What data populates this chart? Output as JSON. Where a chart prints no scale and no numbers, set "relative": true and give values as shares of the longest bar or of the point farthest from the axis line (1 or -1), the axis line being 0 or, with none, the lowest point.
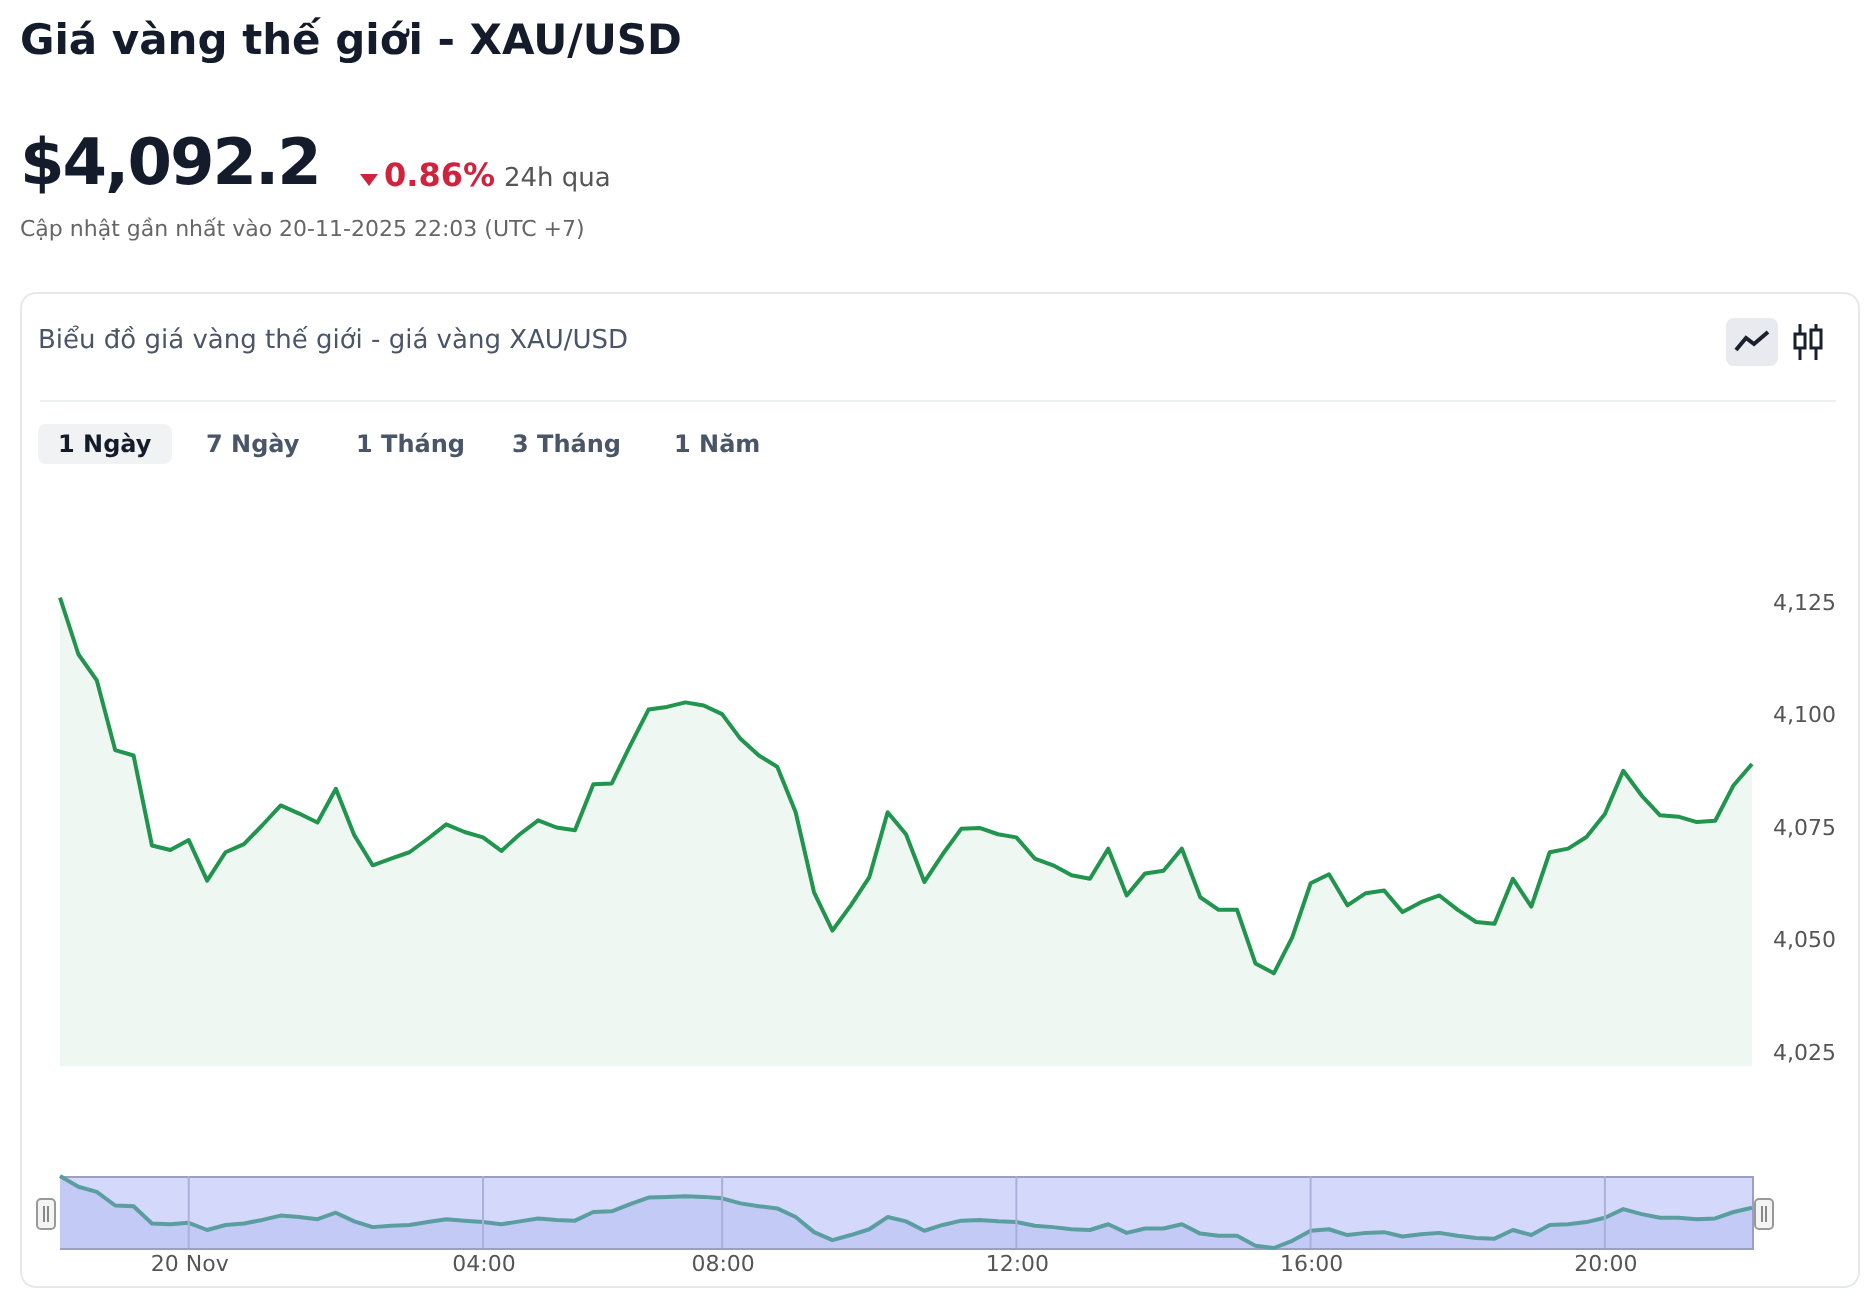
{
  "chart_data": [
    {
      "type": "area",
      "title": "Giá vàng thế giới - XAU/USD",
      "subtitle": "Biểu đồ giá vàng thế giới - giá vàng XAU/USD",
      "annotations": [
        "$4,092.2",
        "0.86%",
        "24h qua",
        "Cập nhật gần nhất vào 20-11-2025 22:03 (UTC +7)",
        "1 Ngày",
        "7 Ngày",
        "1 Tháng",
        "3 Tháng",
        "1 Năm"
      ],
      "categories": [
        null,
        null,
        null,
        null,
        null,
        null,
        null,
        null,
        null,
        null,
        null,
        null,
        null,
        null,
        null,
        null,
        null,
        null,
        null,
        null,
        null,
        null,
        null,
        null,
        null,
        null,
        null,
        null,
        null,
        null,
        null,
        null,
        null,
        null,
        null,
        null,
        null,
        null,
        null,
        null,
        null,
        null,
        null,
        null,
        null,
        null,
        null,
        null,
        null,
        null,
        null,
        null,
        null,
        null,
        null,
        null,
        null,
        null,
        null,
        null,
        null,
        null,
        null,
        null,
        null,
        null,
        null,
        null,
        null,
        null,
        null,
        null,
        null,
        null,
        null,
        null,
        null,
        null,
        null,
        null,
        null,
        null,
        null,
        null,
        null,
        null,
        null,
        null,
        null,
        null,
        null,
        null,
        null
      ],
      "series": [
        {
          "color": "#21944e",
          "values": [
            4126.1,
            4113.5,
            4107.7,
            4092.2,
            4091.0,
            4071.0,
            4070.0,
            4072.2,
            4063.2,
            4069.5,
            4071.3,
            4075.5,
            4079.9,
            4078.1,
            4076.1,
            4083.6,
            4073.3,
            4066.6,
            4068.1,
            4069.5,
            4072.5,
            4075.7,
            4074.0,
            4072.8,
            4069.8,
            4073.5,
            4076.6,
            4075.0,
            4074.4,
            4084.6,
            4084.8,
            4093.2,
            4101.2,
            4101.8,
            4102.8,
            4102.1,
            4100.2,
            4094.7,
            4091.0,
            4088.5,
            4078.4,
            4060.6,
            4052.1,
            4057.7,
            4063.9,
            4078.4,
            4073.5,
            4062.9,
            4069.1,
            4074.7,
            4074.9,
            4073.5,
            4072.8,
            4068.1,
            4066.6,
            4064.4,
            4063.6,
            4070.3,
            4059.9,
            4064.8,
            4065.4,
            4070.3,
            4059.5,
            4056.7,
            4056.7,
            4044.8,
            4042.6,
            4050.6,
            4062.6,
            4064.6,
            4057.7,
            4060.4,
            4061.0,
            4056.2,
            4058.4,
            4059.9,
            4056.7,
            4054.0,
            4053.6,
            4063.6,
            4057.4,
            4069.5,
            4070.3,
            4072.9,
            4078.0,
            4087.6,
            4082.1,
            4077.7,
            4077.4,
            4076.2,
            4076.5,
            4084.4,
            4089.1
          ]
        }
      ],
      "ylim": [
        4022,
        4130
      ],
      "yticks": [
        {
          "value": 4025,
          "label": "4,025"
        },
        {
          "value": 4050,
          "label": "4,050"
        },
        {
          "value": 4075,
          "label": "4,075"
        },
        {
          "value": 4100,
          "label": "4,100"
        },
        {
          "value": 4125,
          "label": "4,125"
        }
      ]
    },
    {
      "type": "area",
      "relative": true,
      "tick_labels": "x",
      "grid": "x",
      "categories": [
        null,
        null,
        null,
        null,
        null,
        null,
        null,
        "20 Nov",
        null,
        null,
        null,
        null,
        null,
        null,
        null,
        null,
        null,
        null,
        null,
        null,
        null,
        null,
        null,
        "04:00",
        null,
        null,
        null,
        null,
        null,
        null,
        null,
        null,
        null,
        null,
        null,
        null,
        "08:00",
        null,
        null,
        null,
        null,
        null,
        null,
        null,
        null,
        null,
        null,
        null,
        null,
        null,
        null,
        null,
        "12:00",
        null,
        null,
        null,
        null,
        null,
        null,
        null,
        null,
        null,
        null,
        null,
        null,
        null,
        null,
        null,
        "16:00",
        null,
        null,
        null,
        null,
        null,
        null,
        null,
        null,
        null,
        null,
        null,
        null,
        null,
        null,
        null,
        "20:00",
        null,
        null,
        null,
        null,
        null,
        null,
        null,
        null
      ],
      "series": [
        {
          "color": "#5b9ea0",
          "values": [
            1.0,
            0.85,
            0.78,
            0.59,
            0.58,
            0.34,
            0.33,
            0.35,
            0.25,
            0.32,
            0.34,
            0.39,
            0.45,
            0.43,
            0.4,
            0.49,
            0.37,
            0.29,
            0.31,
            0.32,
            0.36,
            0.4,
            0.38,
            0.36,
            0.33,
            0.37,
            0.41,
            0.39,
            0.38,
            0.5,
            0.51,
            0.61,
            0.7,
            0.71,
            0.72,
            0.71,
            0.69,
            0.62,
            0.58,
            0.55,
            0.43,
            0.22,
            0.11,
            0.18,
            0.26,
            0.43,
            0.37,
            0.24,
            0.32,
            0.38,
            0.39,
            0.37,
            0.36,
            0.31,
            0.29,
            0.26,
            0.25,
            0.33,
            0.21,
            0.27,
            0.27,
            0.33,
            0.2,
            0.17,
            0.17,
            0.03,
            0.0,
            0.1,
            0.24,
            0.26,
            0.18,
            0.21,
            0.22,
            0.16,
            0.19,
            0.21,
            0.17,
            0.14,
            0.13,
            0.25,
            0.18,
            0.32,
            0.33,
            0.36,
            0.42,
            0.54,
            0.47,
            0.42,
            0.42,
            0.4,
            0.41,
            0.5,
            0.56
          ]
        }
      ]
    }
  ]
}
